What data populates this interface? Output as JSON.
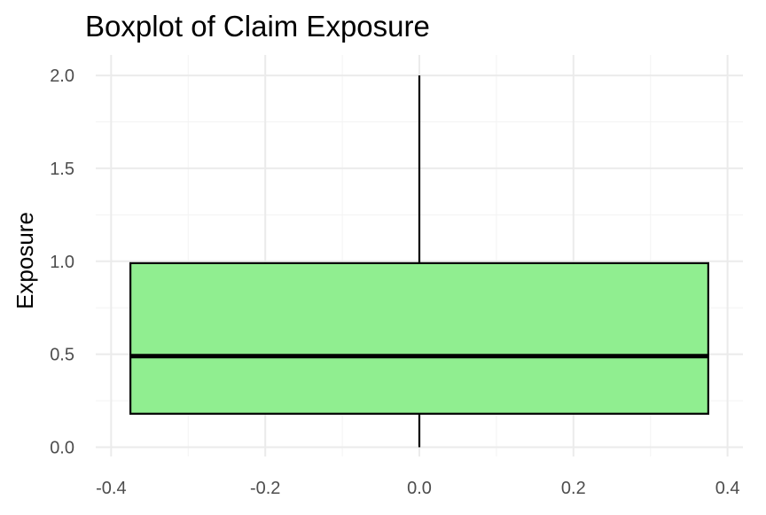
{
  "chart_data": {
    "type": "boxplot",
    "title": "Boxplot of Claim Exposure",
    "xlabel": "",
    "ylabel": "Exposure",
    "xlim": [
      -0.42,
      0.42
    ],
    "ylim": [
      -0.05,
      2.11
    ],
    "x_ticks": [
      -0.4,
      -0.2,
      0.0,
      0.2,
      0.4
    ],
    "x_tick_labels": [
      "-0.4",
      "-0.2",
      "0.0",
      "0.2",
      "0.4"
    ],
    "y_ticks": [
      0.0,
      0.5,
      1.0,
      1.5,
      2.0
    ],
    "y_tick_labels": [
      "0.0",
      "0.5",
      "1.0",
      "1.5",
      "2.0"
    ],
    "grid": true,
    "box": {
      "x_center": 0.0,
      "x_left": -0.375,
      "x_right": 0.375,
      "whisker_low": 0.0,
      "q1": 0.18,
      "median": 0.49,
      "q3": 0.99,
      "whisker_high": 2.0,
      "fill_color": "#90EE90",
      "line_color": "#000000"
    }
  }
}
